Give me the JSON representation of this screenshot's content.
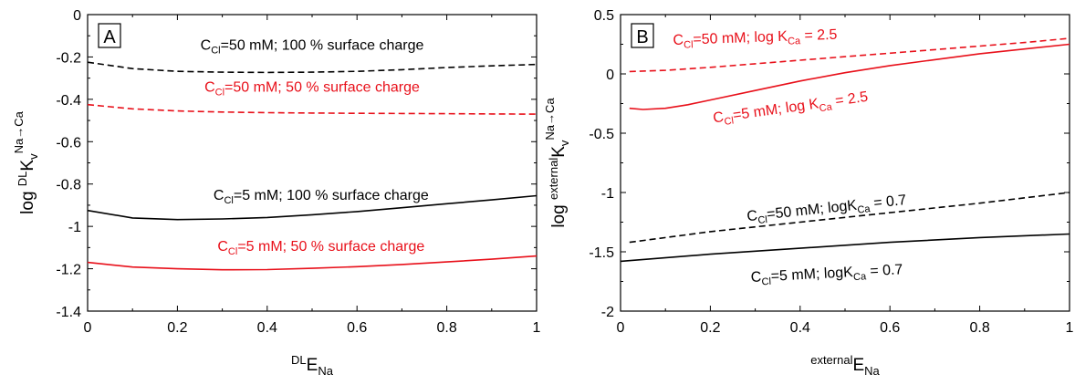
{
  "colors": {
    "black": "#000000",
    "red": "#e8101a"
  },
  "chart_data": [
    {
      "type": "line",
      "panel_label": "A",
      "xlabel_sup": "DL",
      "xlabel_main": "E",
      "xlabel_sub": "Na",
      "ylabel_pre": "log",
      "ylabel_sup": "DL",
      "ylabel_main": "K",
      "ylabel_sub": "v",
      "ylabel_sup2": "Na→Ca",
      "xlim": [
        0,
        1
      ],
      "ylim": [
        -1.4,
        0
      ],
      "xticks": [
        0,
        0.2,
        0.4,
        0.6,
        0.8,
        1
      ],
      "xtick_labels": [
        "0",
        "0.2",
        "0.4",
        "0.6",
        "0.8",
        "1"
      ],
      "yticks": [
        -1.4,
        -1.2,
        -1,
        -0.8,
        -0.6,
        -0.4,
        -0.2,
        0
      ],
      "ytick_labels": [
        "-1.4",
        "-1.2",
        "-1",
        "-0.8",
        "-0.6",
        "-0.4",
        "-0.2",
        "0"
      ],
      "series": [
        {
          "color": "black",
          "dashed": true,
          "x": [
            0,
            0.1,
            0.2,
            0.3,
            0.4,
            0.5,
            0.6,
            0.7,
            0.8,
            0.9,
            1
          ],
          "y": [
            -0.225,
            -0.255,
            -0.268,
            -0.272,
            -0.273,
            -0.272,
            -0.268,
            -0.26,
            -0.25,
            -0.242,
            -0.235
          ]
        },
        {
          "color": "red",
          "dashed": true,
          "x": [
            0,
            0.1,
            0.2,
            0.3,
            0.4,
            0.5,
            0.6,
            0.7,
            0.8,
            0.9,
            1
          ],
          "y": [
            -0.425,
            -0.445,
            -0.455,
            -0.46,
            -0.463,
            -0.465,
            -0.466,
            -0.467,
            -0.468,
            -0.469,
            -0.47
          ]
        },
        {
          "color": "black",
          "dashed": false,
          "x": [
            0,
            0.1,
            0.2,
            0.3,
            0.4,
            0.5,
            0.6,
            0.7,
            0.8,
            0.9,
            1
          ],
          "y": [
            -0.925,
            -0.96,
            -0.968,
            -0.965,
            -0.958,
            -0.945,
            -0.93,
            -0.912,
            -0.893,
            -0.875,
            -0.855
          ]
        },
        {
          "color": "red",
          "dashed": false,
          "x": [
            0,
            0.1,
            0.2,
            0.3,
            0.4,
            0.5,
            0.6,
            0.7,
            0.8,
            0.9,
            1
          ],
          "y": [
            -1.17,
            -1.192,
            -1.2,
            -1.205,
            -1.204,
            -1.198,
            -1.19,
            -1.18,
            -1.168,
            -1.155,
            -1.14
          ]
        }
      ],
      "annotations": [
        {
          "pre": "C",
          "sub": "Cl",
          "post": "=50 mM; 100 % surface charge",
          "color": "black",
          "x": 0.5,
          "y": -0.165
        },
        {
          "pre": "C",
          "sub": "Cl",
          "post": "=50 mM; 50 % surface charge",
          "color": "red",
          "x": 0.5,
          "y": -0.365
        },
        {
          "pre": "C",
          "sub": "Cl",
          "post": "=5 mM; 100 % surface charge",
          "color": "black",
          "x": 0.52,
          "y": -0.875
        },
        {
          "pre": "C",
          "sub": "Cl",
          "post": "=5 mM; 50 % surface charge",
          "color": "red",
          "x": 0.52,
          "y": -1.115
        }
      ]
    },
    {
      "type": "line",
      "panel_label": "B",
      "xlabel_sup": "external",
      "xlabel_main": "E",
      "xlabel_sub": "Na",
      "ylabel_pre": "log",
      "ylabel_sup": "external",
      "ylabel_main": "K",
      "ylabel_sub": "v",
      "ylabel_sup2": "Na→Ca",
      "xlim": [
        0,
        1
      ],
      "ylim": [
        -2,
        0.5
      ],
      "xticks": [
        0,
        0.2,
        0.4,
        0.6,
        0.8,
        1
      ],
      "xtick_labels": [
        "0",
        "0.2",
        "0.4",
        "0.6",
        "0.8",
        "1"
      ],
      "yticks": [
        -2,
        -1.5,
        -1,
        -0.5,
        0,
        0.5
      ],
      "ytick_labels": [
        "-2",
        "-1.5",
        "-1",
        "-0.5",
        "0",
        "0.5"
      ],
      "series": [
        {
          "color": "red",
          "dashed": true,
          "x": [
            0.02,
            0.1,
            0.2,
            0.3,
            0.4,
            0.5,
            0.6,
            0.7,
            0.8,
            0.9,
            1
          ],
          "y": [
            0.02,
            0.03,
            0.055,
            0.085,
            0.115,
            0.145,
            0.175,
            0.205,
            0.235,
            0.265,
            0.3
          ]
        },
        {
          "color": "red",
          "dashed": false,
          "x": [
            0.02,
            0.05,
            0.1,
            0.15,
            0.2,
            0.3,
            0.4,
            0.5,
            0.6,
            0.7,
            0.8,
            0.9,
            1
          ],
          "y": [
            -0.29,
            -0.3,
            -0.29,
            -0.26,
            -0.22,
            -0.14,
            -0.06,
            0.01,
            0.07,
            0.12,
            0.17,
            0.21,
            0.25
          ]
        },
        {
          "color": "black",
          "dashed": true,
          "x": [
            0.02,
            0.2,
            0.4,
            0.6,
            0.8,
            1
          ],
          "y": [
            -1.42,
            -1.33,
            -1.25,
            -1.17,
            -1.09,
            -1.0
          ]
        },
        {
          "color": "black",
          "dashed": false,
          "x": [
            0,
            0.2,
            0.4,
            0.6,
            0.8,
            1
          ],
          "y": [
            -1.58,
            -1.52,
            -1.47,
            -1.42,
            -1.38,
            -1.35
          ]
        }
      ],
      "annotations": [
        {
          "pre": "C",
          "sub": "Cl",
          "post": "=50 mM; log K",
          "sub2": "Ca",
          "post2": " = 2.5",
          "color": "red",
          "x": 0.3,
          "y": 0.27,
          "angle": -2
        },
        {
          "pre": "C",
          "sub": "Cl",
          "post": "=5 mM; log K",
          "sub2": "Ca",
          "post2": " = 2.5",
          "color": "red",
          "x": 0.38,
          "y": -0.32,
          "angle": -8
        },
        {
          "pre": "C",
          "sub": "Cl",
          "post": "=50 mM; logK",
          "sub2": "Ca",
          "post2": " = 0.7",
          "color": "black",
          "x": 0.46,
          "y": -1.17,
          "angle": -6
        },
        {
          "pre": "C",
          "sub": "Cl",
          "post": "=5 mM; logK",
          "sub2": "Ca",
          "post2": " = 0.7",
          "color": "black",
          "x": 0.46,
          "y": -1.72,
          "angle": -3
        }
      ]
    }
  ]
}
